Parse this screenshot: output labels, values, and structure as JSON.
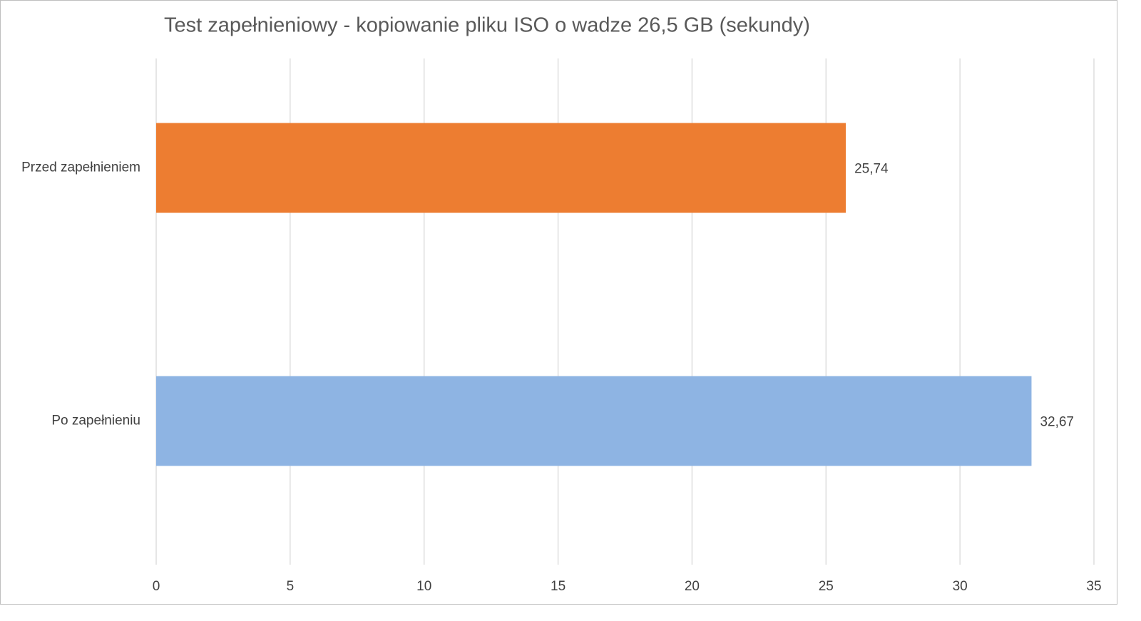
{
  "chart_data": {
    "type": "bar",
    "orientation": "horizontal",
    "title": "Test zapełnieniowy - kopiowanie pliku ISO o wadze 26,5 GB (sekundy)",
    "categories": [
      "Przed zapełnieniem",
      "Po zapełnieniu"
    ],
    "values": [
      25.74,
      32.67
    ],
    "value_labels": [
      "25,74",
      "32,67"
    ],
    "colors": [
      "#ed7d31",
      "#8eb4e3"
    ],
    "xlim": [
      0,
      35
    ],
    "xticks": [
      0,
      5,
      10,
      15,
      20,
      25,
      30,
      35
    ],
    "grid": true
  }
}
